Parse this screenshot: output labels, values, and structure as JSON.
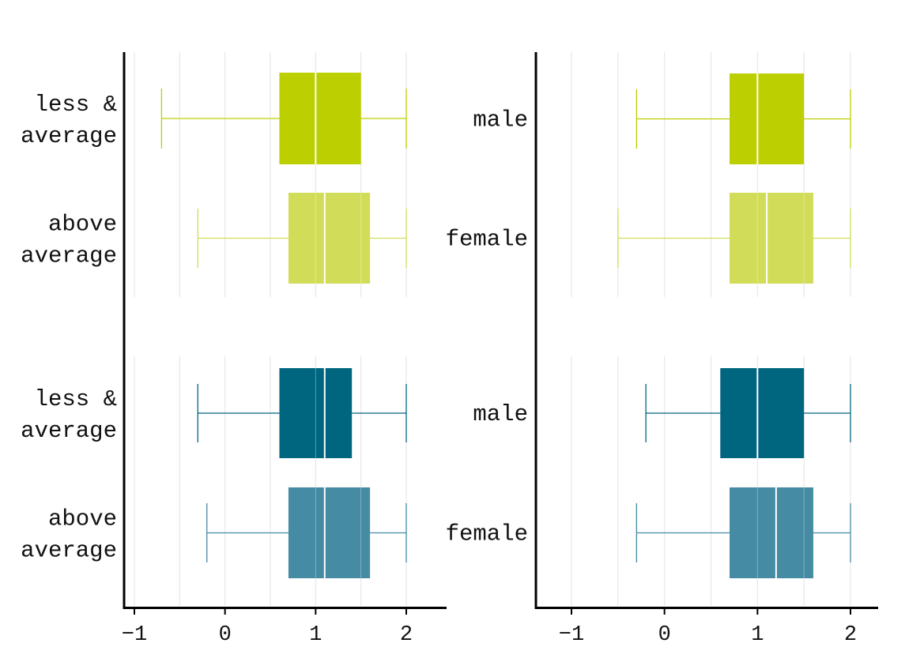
{
  "chart_data": [
    {
      "type": "boxplot",
      "panel": "top-left",
      "orientation": "horizontal",
      "categories": [
        "less & average",
        "above average"
      ],
      "boxes": [
        {
          "category": "less & average",
          "min": -0.7,
          "q1": 0.6,
          "median": 1.0,
          "q3": 1.5,
          "max": 2.0,
          "color": "#bccf00"
        },
        {
          "category": "above average",
          "min": -0.3,
          "q1": 0.7,
          "median": 1.1,
          "q3": 1.6,
          "max": 2.0,
          "color": "#d1dd58"
        }
      ],
      "xlim": [
        -1.1,
        2.45
      ],
      "xticks": [
        -1,
        0,
        1,
        2
      ],
      "grid": true
    },
    {
      "type": "boxplot",
      "panel": "top-right",
      "orientation": "horizontal",
      "categories": [
        "male",
        "female"
      ],
      "boxes": [
        {
          "category": "male",
          "min": -0.3,
          "q1": 0.7,
          "median": 1.0,
          "q3": 1.5,
          "max": 2.0,
          "color": "#bccf00"
        },
        {
          "category": "female",
          "min": -0.5,
          "q1": 0.7,
          "median": 1.1,
          "q3": 1.6,
          "max": 2.0,
          "color": "#d1dd58"
        }
      ],
      "xlim": [
        -1.15,
        2.3
      ],
      "xticks": [
        -1,
        0,
        1,
        2
      ],
      "grid": true
    },
    {
      "type": "boxplot",
      "panel": "bottom-left",
      "orientation": "horizontal",
      "categories": [
        "less & average",
        "above average"
      ],
      "boxes": [
        {
          "category": "less & average",
          "min": -0.3,
          "q1": 0.6,
          "median": 1.1,
          "q3": 1.4,
          "max": 2.0,
          "color": "#006680"
        },
        {
          "category": "above average",
          "min": -0.2,
          "q1": 0.7,
          "median": 1.1,
          "q3": 1.6,
          "max": 2.0,
          "color": "#448ba3"
        }
      ],
      "xlim": [
        -1.1,
        2.45
      ],
      "xticks": [
        -1,
        0,
        1,
        2
      ],
      "xticklabels": [
        "−1",
        "0",
        "1",
        "2"
      ],
      "grid": true
    },
    {
      "type": "boxplot",
      "panel": "bottom-right",
      "orientation": "horizontal",
      "categories": [
        "male",
        "female"
      ],
      "boxes": [
        {
          "category": "male",
          "min": -0.2,
          "q1": 0.6,
          "median": 1.0,
          "q3": 1.5,
          "max": 2.0,
          "color": "#006680"
        },
        {
          "category": "female",
          "min": -0.3,
          "q1": 0.7,
          "median": 1.2,
          "q3": 1.6,
          "max": 2.0,
          "color": "#448ba3"
        }
      ],
      "xlim": [
        -1.15,
        2.3
      ],
      "xticks": [
        -1,
        0,
        1,
        2
      ],
      "xticklabels": [
        "−1",
        "0",
        "1",
        "2"
      ],
      "grid": true
    }
  ],
  "labels": {
    "left_row1": [
      "less &",
      "average"
    ],
    "left_row2": [
      "above",
      "average"
    ],
    "right_row1": "male",
    "right_row2": "female"
  }
}
